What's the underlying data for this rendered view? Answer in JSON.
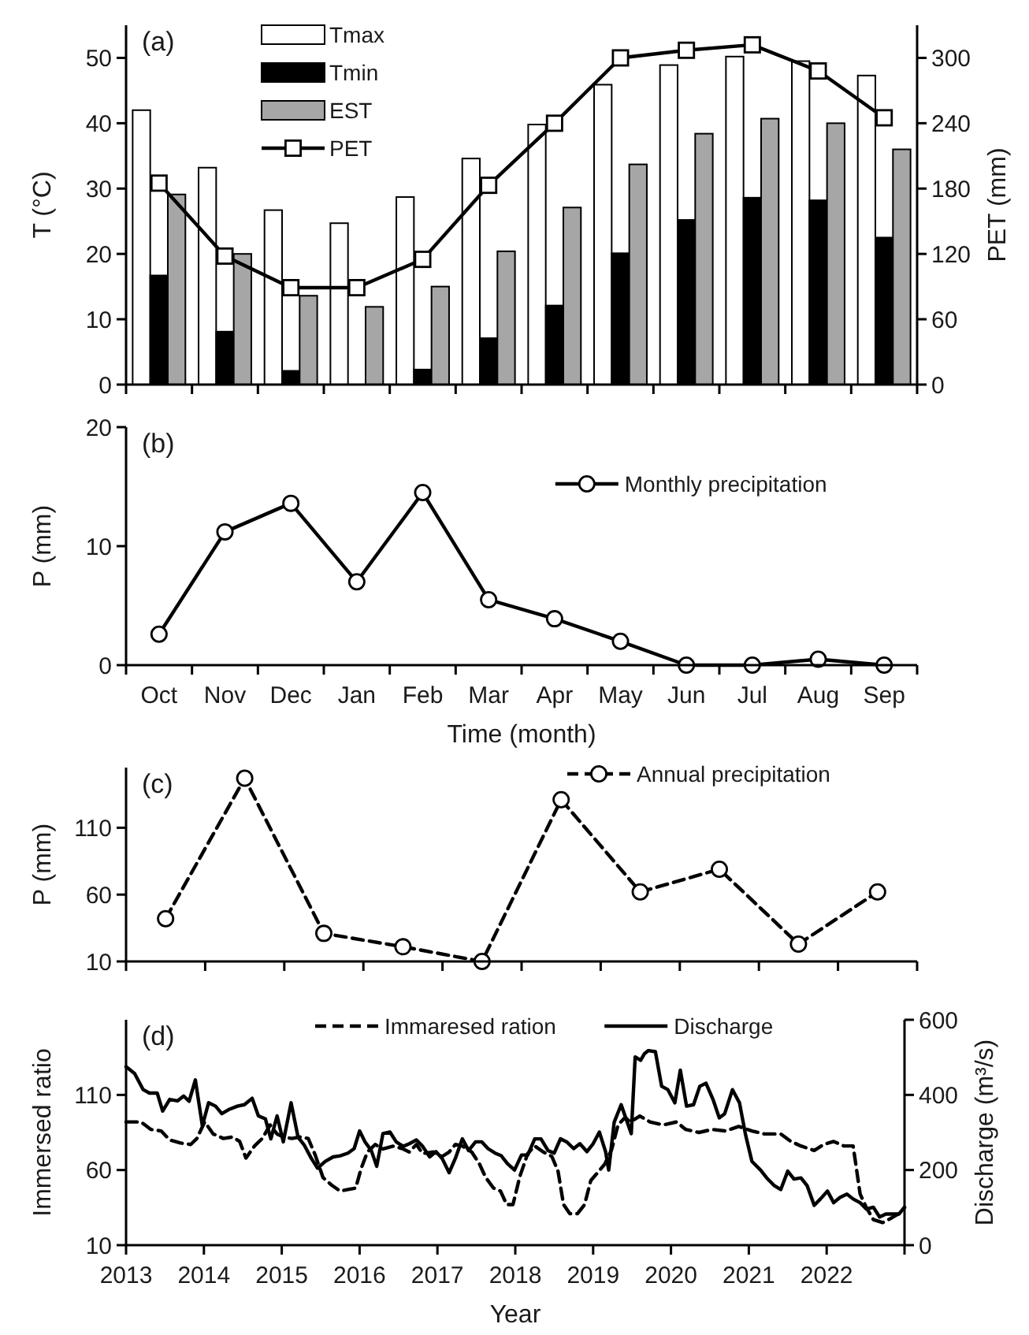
{
  "chart_data": [
    {
      "type": "bar",
      "categories": [
        null,
        null,
        null,
        null,
        null,
        null,
        null,
        null,
        null,
        null,
        null,
        null
      ],
      "ylabel": "T (°C)",
      "y2label": "PET (mm)",
      "ylim": [
        0,
        55
      ],
      "yticks": [
        0,
        10,
        20,
        30,
        40,
        50
      ],
      "y2lim": [
        0,
        330
      ],
      "y2ticks": [
        0,
        60,
        120,
        180,
        240,
        300
      ],
      "tick_labels": "y",
      "legend": "top left",
      "annotations": [
        "(a)"
      ],
      "series": [
        {
          "name": "Tmax",
          "color": "#ffffff",
          "values": [
            42,
            33.2,
            26.7,
            24.7,
            28.7,
            34.6,
            39.8,
            45.9,
            48.9,
            50.2,
            49.5,
            47.3
          ]
        },
        {
          "name": "Tmin",
          "color": "#000000",
          "values": [
            16.7,
            8.1,
            2.1,
            0,
            2.3,
            7.1,
            12.1,
            20.1,
            25.2,
            28.6,
            28.2,
            22.5
          ]
        },
        {
          "name": "EST",
          "color": "#a6a6a6",
          "values": [
            29.1,
            20,
            13.6,
            11.9,
            15,
            20.4,
            27.1,
            33.7,
            38.4,
            40.7,
            40,
            36
          ]
        },
        {
          "name": "PET",
          "type": "line",
          "axis": "y2",
          "marker": "square",
          "color": "#000000",
          "values": [
            185,
            118,
            89,
            89,
            115,
            183,
            240,
            300,
            307,
            312,
            288,
            245
          ]
        }
      ]
    },
    {
      "type": "line",
      "categories": [
        "Oct",
        "Nov",
        "Dec",
        "Jan",
        "Feb",
        "Mar",
        "Apr",
        "May",
        "Jun",
        "Jul",
        "Aug",
        "Sep"
      ],
      "xlabel": "Time (month)",
      "ylabel": "P (mm)",
      "ylim": [
        0,
        20
      ],
      "yticks": [
        0,
        10,
        20
      ],
      "legend": "top right",
      "marker": "circle",
      "annotations": [
        "(b)"
      ],
      "series": [
        {
          "name": "Monthly precipitation",
          "color": "#000000",
          "values": [
            2.6,
            11.2,
            13.6,
            7,
            14.5,
            5.5,
            3.9,
            2,
            0,
            0,
            0.5,
            0
          ]
        }
      ]
    },
    {
      "type": "line",
      "categories": [
        null,
        null,
        null,
        null,
        null,
        null,
        null,
        null,
        null,
        null
      ],
      "ylabel": "P (mm)",
      "ylim": [
        10,
        155
      ],
      "yticks": [
        10,
        60,
        110
      ],
      "tick_labels": "y",
      "legend": "top right",
      "marker": "circle",
      "line_style": "dashed",
      "annotations": [
        "(c)"
      ],
      "series": [
        {
          "name": "Annual precipitation",
          "color": "#000000",
          "values": [
            42,
            147,
            31,
            21,
            10,
            131,
            62,
            79,
            23,
            62
          ]
        }
      ]
    },
    {
      "type": "line",
      "xlim": [
        2013,
        2023
      ],
      "xticks": [
        2013,
        2014,
        2015,
        2016,
        2017,
        2018,
        2019,
        2020,
        2021,
        2022,
        {
          "value": 2023,
          "label": null
        }
      ],
      "xlabel": "Year",
      "ylabel": "Immersed ratio",
      "y2label": "Discharge (m³/s)",
      "ylim": [
        10,
        160
      ],
      "yticks": [
        10,
        60,
        110
      ],
      "y2lim": [
        0,
        600
      ],
      "y2ticks": [
        0,
        200,
        400,
        600
      ],
      "legend": "top",
      "marker": "none",
      "annotations": [
        "(d)"
      ],
      "series": [
        {
          "name": "Immaresed ration",
          "color": "#000000",
          "line_style": "dashed",
          "x": [
            2013,
            2013.19,
            2013.32,
            2013.45,
            2013.56,
            2013.7,
            2013.83,
            2013.91,
            2014.01,
            2014.12,
            2014.25,
            2014.37,
            2014.46,
            2014.54,
            2014.65,
            2014.75,
            2014.85,
            2014.94,
            2015.02,
            2015.13,
            2015.24,
            2015.34,
            2015.43,
            2015.53,
            2015.64,
            2015.75,
            2015.85,
            2015.95,
            2016.02,
            2016.1,
            2016.2,
            2016.3,
            2016.44,
            2016.56,
            2016.64,
            2016.73,
            2016.81,
            2016.95,
            2017.06,
            2017.15,
            2017.23,
            2017.32,
            2017.44,
            2017.54,
            2017.62,
            2017.72,
            2017.81,
            2017.89,
            2017.97,
            2018.06,
            2018.16,
            2018.25,
            2018.36,
            2018.47,
            2018.55,
            2018.62,
            2018.7,
            2018.8,
            2018.89,
            2018.97,
            2019.07,
            2019.15,
            2019.24,
            2019.32,
            2019.41,
            2019.48,
            2019.6,
            2019.73,
            2019.9,
            2020.07,
            2020.19,
            2020.36,
            2020.53,
            2020.7,
            2020.87,
            2021.04,
            2021.2,
            2021.41,
            2021.54,
            2021.67,
            2021.84,
            2021.96,
            2022.09,
            2022.22,
            2022.34,
            2022.43,
            2022.51,
            2022.6,
            2022.72,
            2022.83,
            2022.93,
            2023
          ],
          "values": [
            92,
            92,
            87,
            86,
            80,
            78,
            77,
            81,
            92,
            84,
            81,
            82,
            79,
            68,
            76,
            81,
            90,
            84,
            82,
            81,
            82,
            81,
            70,
            55,
            50,
            46,
            47,
            48,
            61,
            72,
            77,
            74,
            76,
            74,
            72,
            77,
            71,
            72,
            69,
            72,
            77,
            76,
            72,
            64,
            55,
            48,
            46,
            37,
            37,
            56,
            71,
            76,
            72,
            69,
            59,
            37,
            31,
            31,
            37,
            53,
            59,
            64,
            74,
            90,
            95,
            92,
            96,
            92,
            90,
            92,
            87,
            85,
            87,
            86,
            89,
            86,
            84,
            84,
            79,
            76,
            73,
            77,
            79,
            76,
            76,
            44,
            35,
            27,
            25,
            28,
            31,
            35
          ]
        },
        {
          "name": "Discharge",
          "color": "#000000",
          "line_style": "solid",
          "axis": "y2",
          "x": [
            2013,
            2013.11,
            2013.22,
            2013.3,
            2013.4,
            2013.47,
            2013.56,
            2013.66,
            2013.74,
            2013.81,
            2013.89,
            2013.98,
            2014.06,
            2014.15,
            2014.23,
            2014.33,
            2014.43,
            2014.52,
            2014.62,
            2014.7,
            2014.79,
            2014.86,
            2014.94,
            2015.02,
            2015.12,
            2015.21,
            2015.29,
            2015.38,
            2015.46,
            2015.56,
            2015.66,
            2015.75,
            2015.85,
            2015.93,
            2016,
            2016.07,
            2016.15,
            2016.22,
            2016.3,
            2016.39,
            2016.47,
            2016.56,
            2016.64,
            2016.73,
            2016.81,
            2016.9,
            2016.98,
            2017.06,
            2017.15,
            2017.23,
            2017.32,
            2017.4,
            2017.49,
            2017.57,
            2017.65,
            2017.74,
            2017.82,
            2017.9,
            2017.99,
            2018.08,
            2018.16,
            2018.25,
            2018.33,
            2018.42,
            2018.5,
            2018.58,
            2018.66,
            2018.75,
            2018.83,
            2018.92,
            2019,
            2019.08,
            2019.16,
            2019.2,
            2019.27,
            2019.36,
            2019.41,
            2019.49,
            2019.54,
            2019.61,
            2019.66,
            2019.71,
            2019.8,
            2019.88,
            2019.96,
            2020.05,
            2020.12,
            2020.2,
            2020.29,
            2020.37,
            2020.45,
            2020.54,
            2020.62,
            2020.69,
            2020.79,
            2020.88,
            2020.96,
            2021.04,
            2021.15,
            2021.23,
            2021.33,
            2021.41,
            2021.5,
            2021.58,
            2021.67,
            2021.75,
            2021.84,
            2021.92,
            2022.01,
            2022.09,
            2022.17,
            2022.26,
            2022.34,
            2022.43,
            2022.51,
            2022.6,
            2022.68,
            2022.76,
            2022.85,
            2022.93,
            2023
          ],
          "values": [
            475,
            457,
            414,
            405,
            405,
            357,
            388,
            384,
            397,
            383,
            440,
            318,
            379,
            370,
            350,
            362,
            370,
            374,
            391,
            344,
            336,
            283,
            344,
            275,
            379,
            287,
            266,
            231,
            205,
            223,
            235,
            238,
            245,
            257,
            304,
            275,
            252,
            210,
            297,
            301,
            275,
            263,
            270,
            280,
            263,
            235,
            249,
            231,
            193,
            231,
            283,
            252,
            275,
            275,
            257,
            245,
            238,
            217,
            200,
            240,
            240,
            283,
            283,
            252,
            245,
            283,
            275,
            257,
            270,
            249,
            270,
            301,
            249,
            200,
            327,
            374,
            344,
            297,
            501,
            492,
            510,
            518,
            515,
            423,
            414,
            379,
            466,
            370,
            374,
            423,
            431,
            388,
            339,
            350,
            414,
            379,
            292,
            223,
            200,
            179,
            158,
            148,
            197,
            176,
            179,
            158,
            106,
            123,
            144,
            113,
            127,
            136,
            123,
            113,
            96,
            101,
            75,
            83,
            83,
            83,
            101
          ]
        }
      ]
    }
  ]
}
